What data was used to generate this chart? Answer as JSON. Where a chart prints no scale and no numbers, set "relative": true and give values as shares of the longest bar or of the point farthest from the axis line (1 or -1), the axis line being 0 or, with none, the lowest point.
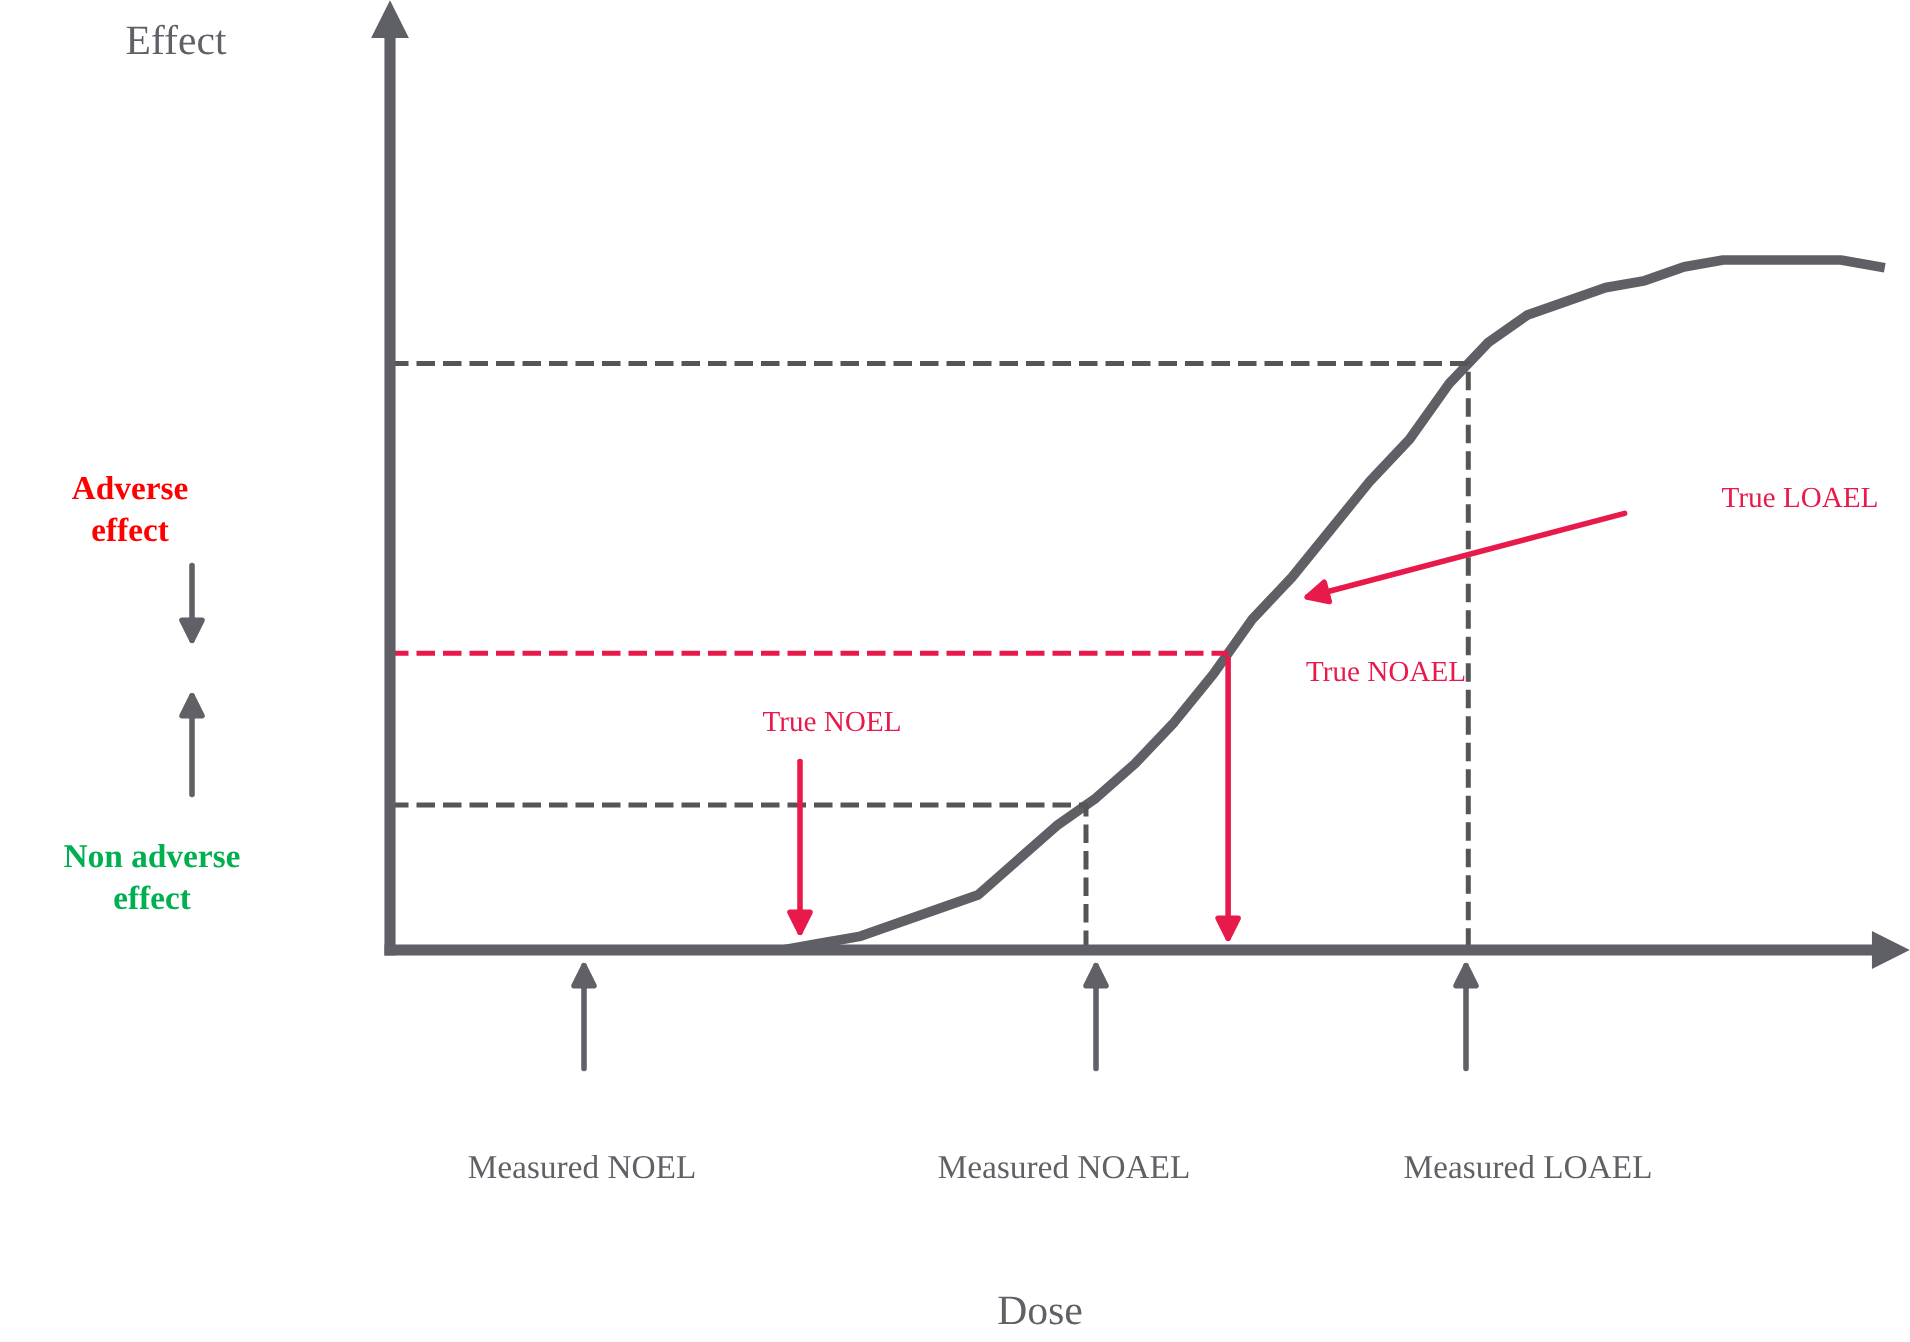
{
  "chart_data": {
    "type": "line",
    "relative": true,
    "categories": [
      null,
      null,
      null,
      null,
      null,
      null,
      null,
      null,
      null,
      null,
      null,
      null,
      null,
      null,
      null,
      null,
      null,
      null,
      null,
      null,
      null,
      null,
      null,
      null,
      null,
      null,
      null,
      null,
      null,
      null,
      null,
      null,
      null,
      null,
      null,
      null,
      null,
      null,
      null
    ],
    "series": [
      {
        "color": "#5f5f66",
        "values": [
          0,
          0,
          0,
          0,
          0,
          0,
          0,
          0,
          0,
          0,
          0,
          0.01,
          0.02,
          0.04,
          0.06,
          0.08,
          0.13,
          0.18,
          0.22,
          0.27,
          0.33,
          0.4,
          0.48,
          0.54,
          0.61,
          0.68,
          0.74,
          0.82,
          0.88,
          0.92,
          0.94,
          0.96,
          0.97,
          0.99,
          1.0,
          1.0,
          1.0,
          1.0,
          0.99
        ]
      }
    ],
    "marker": "none",
    "line_style": "solid",
    "grid": false,
    "ref_lines": [
      {
        "axis": "y",
        "value": 0.85,
        "label": null,
        "color": "#555555",
        "line_style": "dashed"
      },
      {
        "axis": "y",
        "value": 0.43,
        "label": null,
        "color": "#e8194b",
        "line_style": "dashed"
      },
      {
        "axis": "y",
        "value": 0.21,
        "label": null,
        "color": "#555555",
        "line_style": "dashed"
      }
    ],
    "annotations": [
      "True NOEL",
      "True NOAEL",
      "True LOAEL",
      "Measured NOEL",
      "Measured NOAEL",
      "Measured LOAEL",
      "Adverse\neffect",
      "Non adverse\neffect",
      "Effect",
      "Dose"
    ]
  }
}
